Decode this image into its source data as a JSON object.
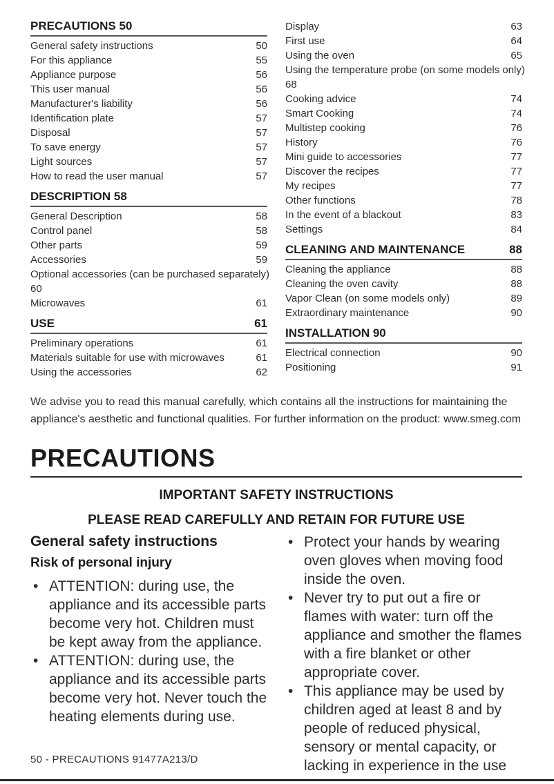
{
  "toc": {
    "columns": [
      {
        "sections": [
          {
            "title": "PRECAUTIONS 50",
            "title_page": "",
            "items": [
              {
                "label": "General safety instructions",
                "page": "50"
              },
              {
                "label": "For this appliance",
                "page": "55"
              },
              {
                "label": "Appliance purpose",
                "page": "56"
              },
              {
                "label": "This user manual",
                "page": "56"
              },
              {
                "label": "Manufacturer's liability",
                "page": "56"
              },
              {
                "label": "Identification plate",
                "page": "57"
              },
              {
                "label": "Disposal",
                "page": "57"
              },
              {
                "label": "To save energy",
                "page": "57"
              },
              {
                "label": "Light sources",
                "page": "57"
              },
              {
                "label": "How to read the user manual",
                "page": "57"
              }
            ]
          },
          {
            "title": "DESCRIPTION 58",
            "title_page": "",
            "items": [
              {
                "label": "General Description",
                "page": "58"
              },
              {
                "label": "Control panel",
                "page": "58"
              },
              {
                "label": "Other parts",
                "page": "59"
              },
              {
                "label": "Accessories",
                "page": "59"
              },
              {
                "label": "Optional accessories (can be purchased separately)",
                "page": "60",
                "wrap": true
              },
              {
                "label": "Microwaves",
                "page": "61"
              }
            ]
          },
          {
            "title": "USE",
            "title_page": "61",
            "items": [
              {
                "label": "Preliminary operations",
                "page": "61"
              },
              {
                "label": "Materials suitable for use with microwaves",
                "page": "61"
              },
              {
                "label": "Using the accessories",
                "page": "62"
              }
            ]
          }
        ]
      },
      {
        "sections": [
          {
            "title": "",
            "title_page": "",
            "items": [
              {
                "label": "Display",
                "page": "63"
              },
              {
                "label": "First use",
                "page": "64"
              },
              {
                "label": "Using the oven",
                "page": "65"
              },
              {
                "label": "Using the temperature probe (on some models only)",
                "page": "68",
                "wrap": true
              },
              {
                "label": "Cooking advice",
                "page": "74"
              },
              {
                "label": "Smart Cooking",
                "page": "74"
              },
              {
                "label": "Multistep cooking",
                "page": "76"
              },
              {
                "label": "History",
                "page": "76"
              },
              {
                "label": "Mini guide to accessories",
                "page": "77"
              },
              {
                "label": "Discover the recipes",
                "page": "77"
              },
              {
                "label": "My recipes",
                "page": "77"
              },
              {
                "label": "Other functions",
                "page": "78"
              },
              {
                "label": "In the event of a blackout",
                "page": "83"
              },
              {
                "label": "Settings",
                "page": "84"
              }
            ]
          },
          {
            "title": "CLEANING AND MAINTENANCE",
            "title_page": "88",
            "items": [
              {
                "label": "Cleaning the appliance",
                "page": "88"
              },
              {
                "label": "Cleaning the oven cavity",
                "page": "88"
              },
              {
                "label": "Vapor Clean (on some models only)",
                "page": "89"
              },
              {
                "label": "Extraordinary maintenance",
                "page": "90"
              }
            ]
          },
          {
            "title": "INSTALLATION 90",
            "title_page": "",
            "items": [
              {
                "label": "Electrical connection",
                "page": "90"
              },
              {
                "label": "Positioning",
                "page": "91"
              }
            ]
          }
        ]
      }
    ]
  },
  "intro_paragraph": "We advise you to read this manual carefully, which contains all the instructions for maintaining the appliance's aesthetic and functional qualities. For further information on the product: www.smeg.com",
  "main": {
    "title": "PRECAUTIONS",
    "subtitle1": "IMPORTANT SAFETY INSTRUCTIONS",
    "subtitle2": "PLEASE READ CAREFULLY AND RETAIN FOR FUTURE USE",
    "left_column": {
      "heading": "General safety instructions",
      "subheading": "Risk of personal injury",
      "bullets": [
        "ATTENTION: during use, the appliance and its accessible parts become very hot. Children must be kept away from the appliance.",
        "ATTENTION: during use, the appliance and its accessible parts become very hot. Never touch the heating elements during use."
      ]
    },
    "right_column": {
      "bullets": [
        "Protect your hands by wearing oven gloves when moving food inside the oven.",
        "Never try to put out a fire or flames with water: turn off the appliance and smother the flames with a fire blanket or other appropriate cover.",
        "This appliance may be used by children aged at least 8 and by people of reduced physical, sensory or mental capacity, or lacking in experience in the use"
      ]
    }
  },
  "page": {
    "footer": "50  -  PRECAUTIONS 91477A213/D"
  }
}
